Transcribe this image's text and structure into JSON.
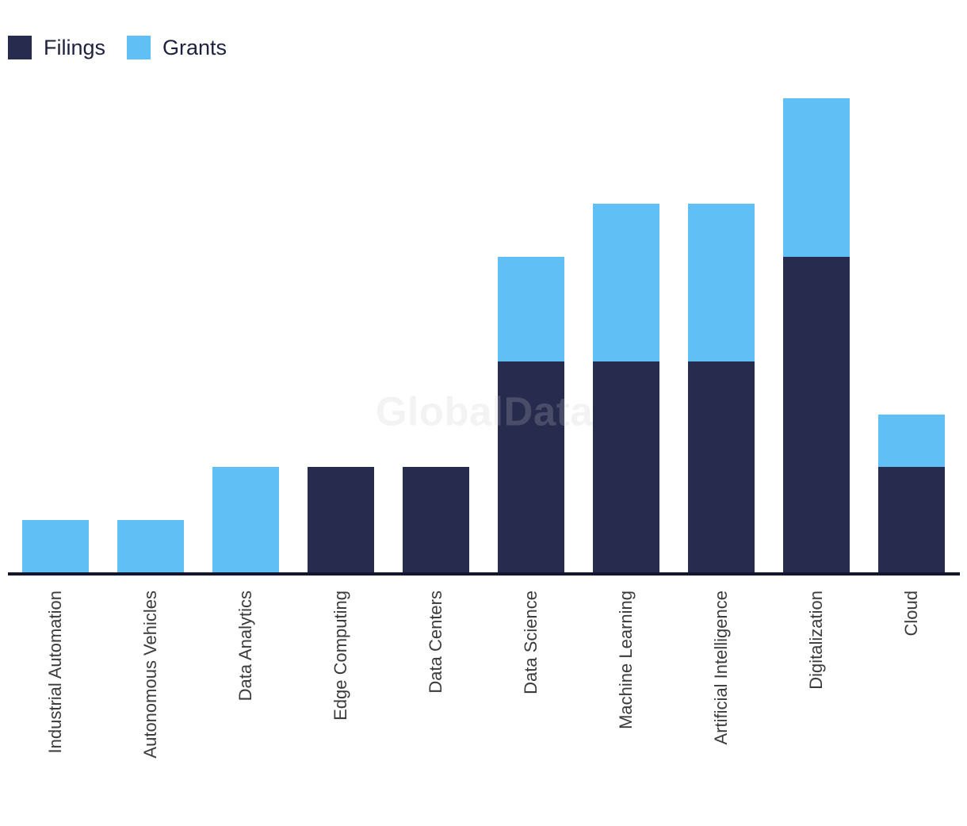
{
  "legend": {
    "items": [
      {
        "label": "Filings",
        "color": "#272B4E"
      },
      {
        "label": "Grants",
        "color": "#60BFF5"
      }
    ]
  },
  "watermark": {
    "text": "GlobalData"
  },
  "colors": {
    "filings": "#272B4E",
    "grants": "#60BFF5",
    "axis_line": "#14162D",
    "label_text": "#3B3B3B",
    "legend_text": "#1E2040",
    "background": "#FFFFFF"
  },
  "chart_data": {
    "type": "bar",
    "stacked": true,
    "orientation": "vertical",
    "title": "",
    "xlabel": "",
    "ylabel": "",
    "grid": false,
    "value_axis_visible": false,
    "legend_position": "top-left",
    "categories": [
      "Industrial Automation",
      "Autonomous Vehicles",
      "Data Analytics",
      "Edge Computing",
      "Data Centers",
      "Data Science",
      "Machine Learning",
      "Artificial Intelligence",
      "Digitalization",
      "Cloud"
    ],
    "series": [
      {
        "name": "Filings",
        "color": "#272B4E",
        "values": [
          0,
          0,
          0,
          2,
          2,
          4,
          4,
          4,
          6,
          2
        ]
      },
      {
        "name": "Grants",
        "color": "#60BFF5",
        "values": [
          1,
          1,
          2,
          0,
          0,
          2,
          3,
          3,
          3,
          1
        ]
      }
    ],
    "stacked_totals": [
      1,
      1,
      2,
      2,
      2,
      6,
      7,
      7,
      9,
      3
    ],
    "ylim": [
      0,
      9
    ],
    "note": "No value axis shown; values are relative units inferred from bar heights (smallest bar = 1 unit)."
  }
}
